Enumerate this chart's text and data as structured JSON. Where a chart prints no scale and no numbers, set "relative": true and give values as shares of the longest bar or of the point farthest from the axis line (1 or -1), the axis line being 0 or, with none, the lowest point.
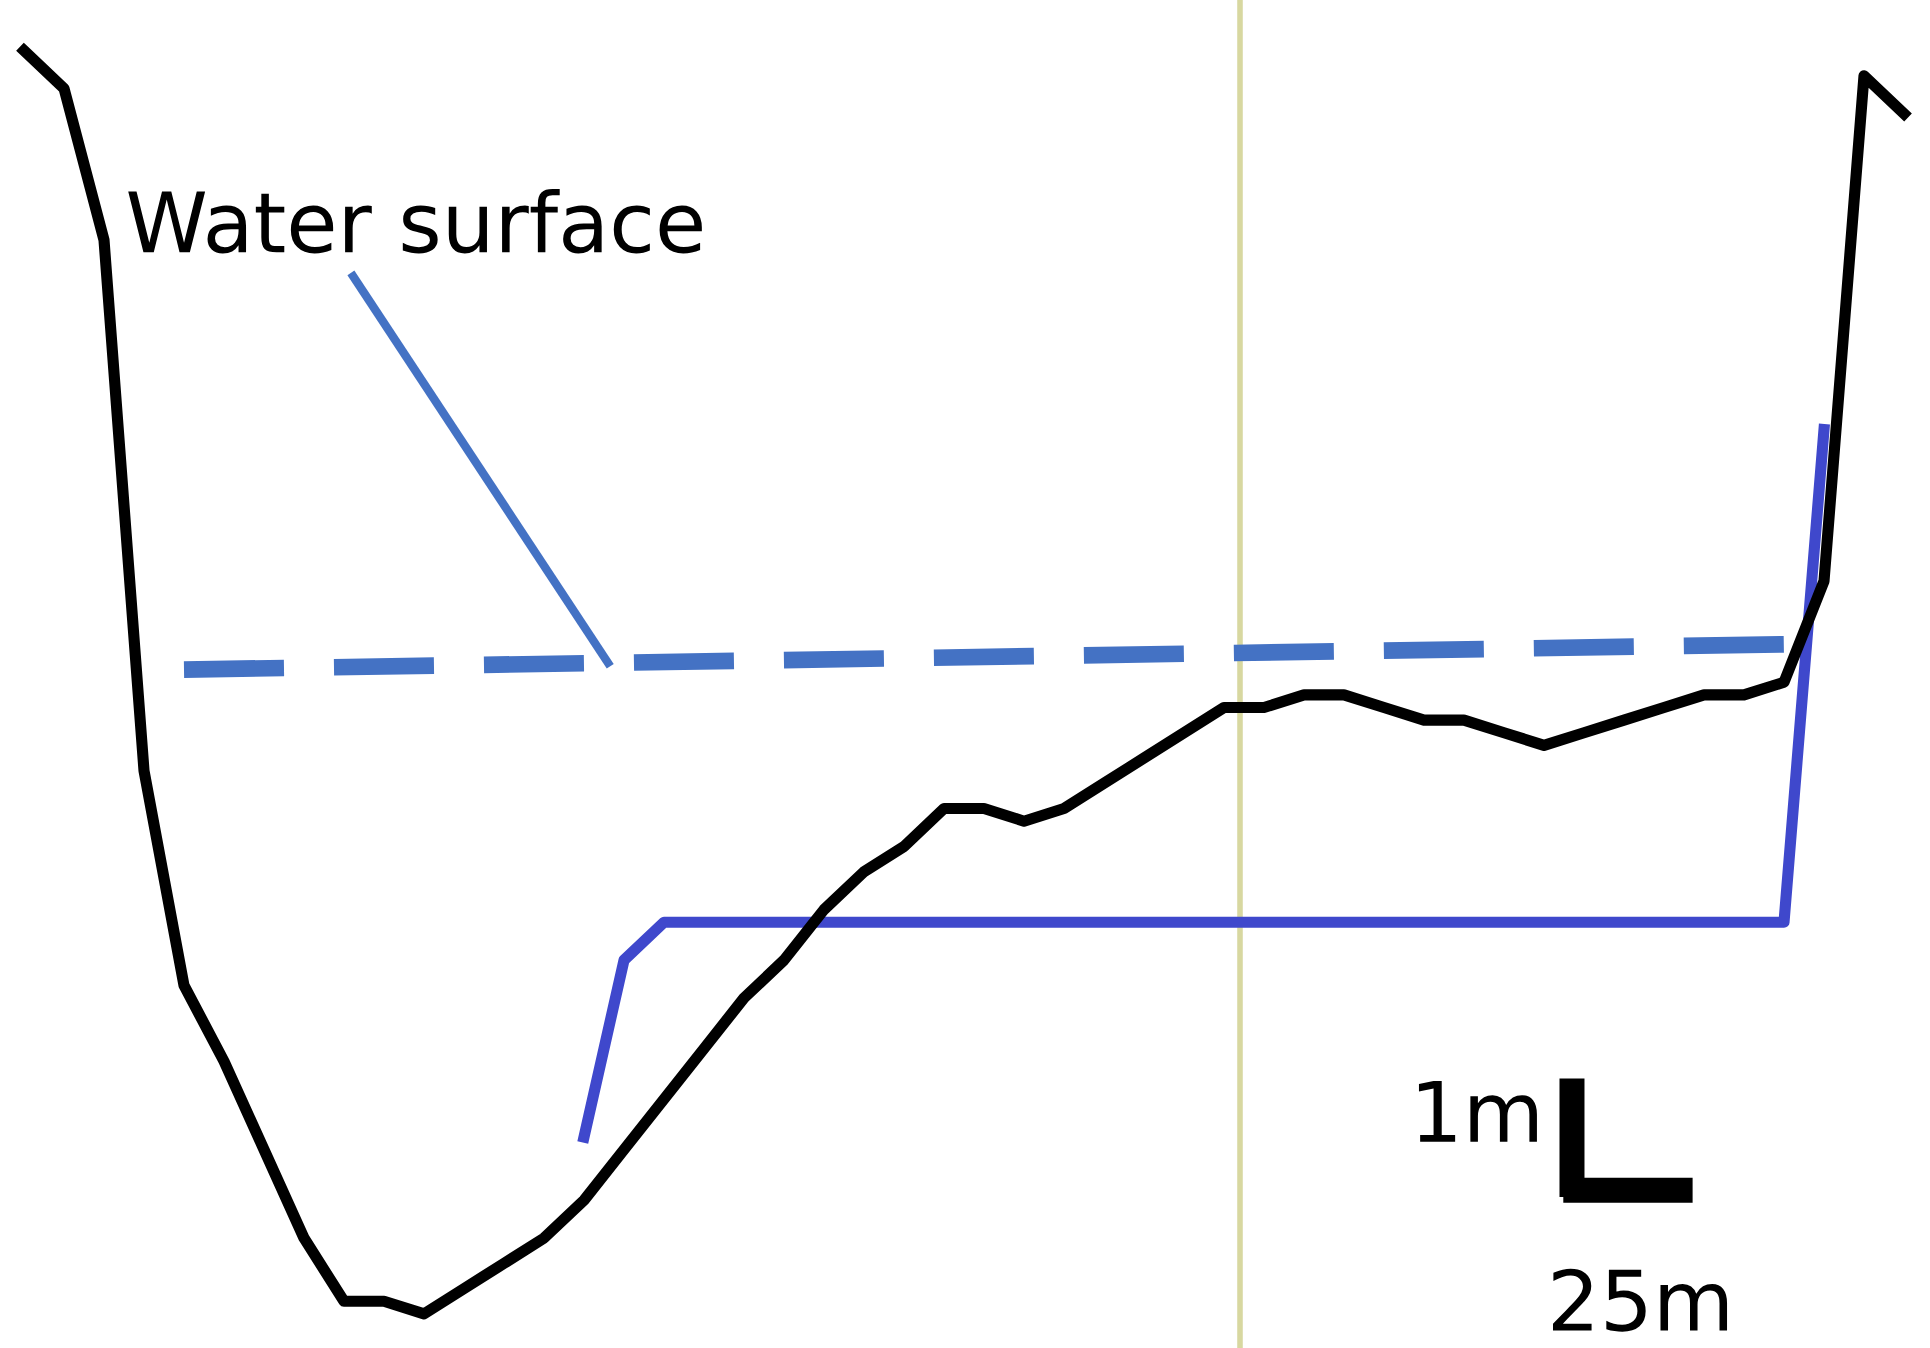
{
  "chart_data": {
    "type": "line",
    "relative": true,
    "categories": [
      null,
      null,
      null,
      null,
      null,
      null,
      null,
      null,
      null,
      null,
      null,
      null,
      null,
      null,
      null,
      null,
      null,
      null,
      null,
      null,
      null,
      null,
      null,
      null,
      null,
      null,
      null,
      null,
      null,
      null,
      null,
      null,
      null,
      null,
      null,
      null,
      null,
      null,
      null,
      null,
      null,
      null,
      null,
      null,
      null,
      null,
      null,
      null
    ],
    "series": [
      {
        "color": "#000000",
        "line_style": "solid",
        "values": [
          1.0,
          0.97,
          0.85,
          0.43,
          0.26,
          0.2,
          0.13,
          0.06,
          0.01,
          0.01,
          0,
          0.02,
          0.04,
          0.06,
          0.09,
          0.13,
          0.17,
          0.21,
          0.25,
          0.28,
          0.32,
          0.35,
          0.37,
          0.4,
          0.4,
          0.39,
          0.4,
          0.42,
          0.44,
          0.46,
          0.48,
          0.48,
          0.49,
          0.49,
          0.48,
          0.47,
          0.47,
          0.46,
          0.45,
          0.46,
          0.47,
          0.48,
          0.49,
          0.49,
          0.5,
          0.58,
          0.98,
          0.95
        ]
      },
      {
        "color": "#4472c4",
        "line_style": "dashed",
        "values": [
          null,
          null,
          null,
          null,
          0.51,
          null,
          null,
          null,
          null,
          null,
          null,
          null,
          null,
          null,
          null,
          null,
          null,
          null,
          null,
          null,
          null,
          null,
          null,
          null,
          null,
          null,
          null,
          null,
          null,
          null,
          null,
          null,
          null,
          null,
          null,
          null,
          null,
          null,
          null,
          null,
          null,
          null,
          null,
          null,
          0.53,
          null,
          null,
          null
        ]
      },
      {
        "color": "#3f48cc",
        "line_style": "solid",
        "values": [
          null,
          null,
          null,
          null,
          null,
          null,
          null,
          null,
          null,
          null,
          null,
          null,
          null,
          null,
          0.14,
          0.28,
          0.31,
          null,
          null,
          null,
          null,
          null,
          null,
          null,
          null,
          null,
          null,
          null,
          null,
          null,
          null,
          null,
          null,
          null,
          null,
          null,
          null,
          null,
          null,
          null,
          null,
          null,
          null,
          null,
          0.31,
          0.7,
          null,
          null
        ]
      }
    ],
    "annotations": [
      "Water surface",
      "1m",
      "25m"
    ]
  }
}
